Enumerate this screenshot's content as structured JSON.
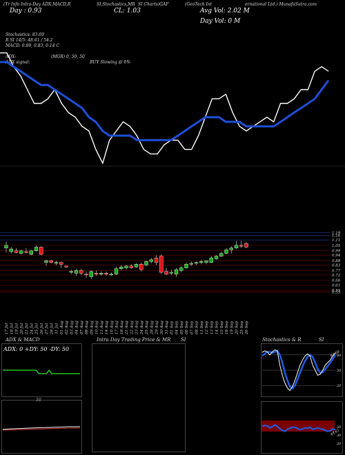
{
  "header": {
    "line1_left": "(Tr Info Intra-Day ADX,MACD,R",
    "line1_mid": "SI,Stochastics,MR",
    "line1_mid2": "SI Charts)GAF",
    "line1_right": "(GeoTech Int",
    "line1_right2": "ernational Ltd.) MunafaSutra.com",
    "day": "Day : 0.93",
    "close": "CL: 1.03",
    "avg_vol": "Avg Vol: 2.02  M",
    "day_vol": "Day Vol: 0   M",
    "stoch": "Stochastics: 83.69",
    "rsi": "R   SI 14/5: 48.61 / 54.2",
    "macd": "MACD: 0.99,  0.83,  0.14   C",
    "adx": "ADX:",
    "mgr": "(MGR) 0,  50,  50",
    "adx_signal": "ADX  signal:",
    "buy": "BUY Slowing @ 0%"
  },
  "colors": {
    "price_line": "#ffffff",
    "ma_line": "#1e4fd8",
    "bull": "#1aa61a",
    "bear": "#e01010",
    "grid_red": "#7a0000"
  },
  "chart_data": {
    "type": "line",
    "price_line": [
      1.14,
      1.14,
      1.11,
      1.09,
      1.06,
      1.03,
      1.03,
      1.04,
      1.06,
      1.03,
      1.01,
      1.0,
      0.98,
      0.97,
      0.93,
      0.9,
      0.95,
      0.97,
      0.99,
      0.98,
      0.96,
      0.93,
      0.92,
      0.92,
      0.94,
      0.95,
      0.95,
      0.93,
      0.93,
      0.96,
      1.0,
      1.04,
      1.04,
      1.05,
      1.01,
      0.98,
      0.97,
      0.98,
      0.99,
      1.0,
      0.99,
      1.03,
      1.03,
      1.04,
      1.06,
      1.06,
      1.1,
      1.11,
      1.1
    ],
    "ma_line": [
      1.12,
      1.12,
      1.11,
      1.1,
      1.09,
      1.08,
      1.07,
      1.07,
      1.06,
      1.05,
      1.04,
      1.03,
      1.02,
      1.0,
      0.99,
      0.97,
      0.96,
      0.96,
      0.96,
      0.96,
      0.95,
      0.95,
      0.95,
      0.95,
      0.95,
      0.95,
      0.96,
      0.97,
      0.98,
      0.99,
      1.0,
      1.0,
      1.0,
      0.99,
      0.99,
      0.99,
      0.98,
      0.98,
      0.98,
      0.98,
      0.98,
      0.99,
      1.0,
      1.01,
      1.02,
      1.03,
      1.04,
      1.06,
      1.08
    ],
    "candles": [
      {
        "d": "17 Jul",
        "o": 1.02,
        "h": 1.09,
        "l": 0.97,
        "c": 1.05
      },
      {
        "d": "18 Jul",
        "o": 0.98,
        "h": 1.03,
        "l": 0.96,
        "c": 1.01
      },
      {
        "d": "19 Jul",
        "o": 0.99,
        "h": 1.02,
        "l": 0.96,
        "c": 0.97
      },
      {
        "d": "20 Jul",
        "o": 0.96,
        "h": 1.0,
        "l": 0.95,
        "c": 0.99
      },
      {
        "d": "21 Jul",
        "o": 0.98,
        "h": 1.02,
        "l": 0.96,
        "c": 0.97
      },
      {
        "d": "24 Jul",
        "o": 0.95,
        "h": 1.0,
        "l": 0.94,
        "c": 0.99
      },
      {
        "d": "25 Jul",
        "o": 0.99,
        "h": 1.05,
        "l": 0.98,
        "c": 1.03
      },
      {
        "d": "26 Jul",
        "o": 1.03,
        "h": 1.04,
        "l": 0.94,
        "c": 0.95
      },
      {
        "d": "27 Jul",
        "o": 0.86,
        "h": 0.89,
        "l": 0.82,
        "c": 0.88
      },
      {
        "d": "28 Jul",
        "o": 0.88,
        "h": 0.89,
        "l": 0.85,
        "c": 0.86
      },
      {
        "d": "31 Jul",
        "o": 0.85,
        "h": 0.88,
        "l": 0.83,
        "c": 0.86
      },
      {
        "d": "01 Aug",
        "o": 0.86,
        "h": 0.87,
        "l": 0.8,
        "c": 0.84
      },
      {
        "d": "02 Aug",
        "o": 0.82,
        "h": 0.82,
        "l": 0.8,
        "c": 0.81
      },
      {
        "d": "03 Aug",
        "o": 0.75,
        "h": 0.78,
        "l": 0.73,
        "c": 0.76
      },
      {
        "d": "04 Aug",
        "o": 0.74,
        "h": 0.79,
        "l": 0.71,
        "c": 0.77
      },
      {
        "d": "07 Aug",
        "o": 0.77,
        "h": 0.79,
        "l": 0.72,
        "c": 0.74
      },
      {
        "d": "08 Aug",
        "o": 0.73,
        "h": 0.76,
        "l": 0.69,
        "c": 0.72
      },
      {
        "d": "09 Aug",
        "o": 0.7,
        "h": 0.77,
        "l": 0.68,
        "c": 0.76
      },
      {
        "d": "10 Aug",
        "o": 0.74,
        "h": 0.77,
        "l": 0.71,
        "c": 0.73
      },
      {
        "d": "11 Aug",
        "o": 0.73,
        "h": 0.76,
        "l": 0.71,
        "c": 0.74
      },
      {
        "d": "14 Aug",
        "o": 0.74,
        "h": 0.76,
        "l": 0.71,
        "c": 0.73
      },
      {
        "d": "16 Aug",
        "o": 0.72,
        "h": 0.75,
        "l": 0.71,
        "c": 0.73
      },
      {
        "d": "17 Aug",
        "o": 0.73,
        "h": 0.81,
        "l": 0.72,
        "c": 0.79
      },
      {
        "d": "18 Aug",
        "o": 0.79,
        "h": 0.83,
        "l": 0.77,
        "c": 0.81
      },
      {
        "d": "21 Aug",
        "o": 0.8,
        "h": 0.83,
        "l": 0.78,
        "c": 0.82
      },
      {
        "d": "22 Aug",
        "o": 0.82,
        "h": 0.84,
        "l": 0.79,
        "c": 0.8
      },
      {
        "d": "23 Aug",
        "o": 0.81,
        "h": 0.85,
        "l": 0.8,
        "c": 0.84
      },
      {
        "d": "24 Aug",
        "o": 0.84,
        "h": 0.86,
        "l": 0.76,
        "c": 0.78
      },
      {
        "d": "25 Aug",
        "o": 0.83,
        "h": 0.88,
        "l": 0.82,
        "c": 0.87
      },
      {
        "d": "28 Aug",
        "o": 0.87,
        "h": 0.91,
        "l": 0.85,
        "c": 0.89
      },
      {
        "d": "29 Aug",
        "o": 0.91,
        "h": 0.94,
        "l": 0.83,
        "c": 0.86
      },
      {
        "d": "30 Aug",
        "o": 0.93,
        "h": 0.95,
        "l": 0.73,
        "c": 0.75
      },
      {
        "d": "31 Aug",
        "o": 0.76,
        "h": 0.8,
        "l": 0.72,
        "c": 0.73
      },
      {
        "d": "01 Sep",
        "o": 0.74,
        "h": 0.78,
        "l": 0.72,
        "c": 0.75
      },
      {
        "d": "04 Sep",
        "o": 0.73,
        "h": 0.8,
        "l": 0.7,
        "c": 0.78
      },
      {
        "d": "05 Sep",
        "o": 0.77,
        "h": 0.82,
        "l": 0.75,
        "c": 0.8
      },
      {
        "d": "06 Sep",
        "o": 0.8,
        "h": 0.86,
        "l": 0.79,
        "c": 0.84
      },
      {
        "d": "07 Sep",
        "o": 0.84,
        "h": 0.87,
        "l": 0.82,
        "c": 0.85
      },
      {
        "d": "08 Sep",
        "o": 0.85,
        "h": 0.87,
        "l": 0.83,
        "c": 0.86
      },
      {
        "d": "11 Sep",
        "o": 0.86,
        "h": 0.89,
        "l": 0.84,
        "c": 0.87
      },
      {
        "d": "12 Sep",
        "o": 0.86,
        "h": 0.88,
        "l": 0.84,
        "c": 0.88
      },
      {
        "d": "13 Sep",
        "o": 0.86,
        "h": 0.93,
        "l": 0.85,
        "c": 0.91
      },
      {
        "d": "14 Sep",
        "o": 0.9,
        "h": 0.94,
        "l": 0.89,
        "c": 0.93
      },
      {
        "d": "15 Sep",
        "o": 0.93,
        "h": 0.98,
        "l": 0.92,
        "c": 0.96
      },
      {
        "d": "18 Sep",
        "o": 0.96,
        "h": 1.02,
        "l": 0.95,
        "c": 1.0
      },
      {
        "d": "19 Sep",
        "o": 1.0,
        "h": 1.04,
        "l": 0.96,
        "c": 1.02
      },
      {
        "d": "20 Sep",
        "o": 1.02,
        "h": 1.1,
        "l": 1.01,
        "c": 1.05
      },
      {
        "d": "25 Sep",
        "o": 1.05,
        "h": 1.1,
        "l": 1.02,
        "c": 1.04
      },
      {
        "d": "26 Sep",
        "o": 1.07,
        "h": 1.09,
        "l": 1.02,
        "c": 1.03
      }
    ],
    "price_ticks": [
      "1.19",
      "1.16",
      "1.11",
      "1.05",
      "0.99",
      "0.94",
      "0.88",
      "0.83",
      "0.77",
      "0.72",
      "0.66",
      "0.61",
      "0.55",
      "0.53"
    ],
    "date_labels": [
      "17 Jul",
      "18 Jul",
      "19 Jul",
      "20 Jul",
      "21 Jul",
      "24 Jul",
      "25 Jul",
      "26 Jul",
      "27 Jul",
      "28 Jul",
      "31 Jul",
      "01 Aug",
      "02 Aug",
      "03 Aug",
      "04 Aug",
      "07 Aug",
      "08 Aug",
      "09 Aug",
      "10 Aug",
      "11 Aug",
      "14 Aug",
      "16 Aug",
      "17 Aug",
      "18 Aug",
      "21 Aug",
      "22 Aug",
      "23 Aug",
      "24 Aug",
      "25 Aug",
      "28 Aug",
      "29 Aug",
      "30 Aug",
      "31 Aug",
      "01 Sep",
      "04 Sep",
      "05 Sep",
      "06 Sep",
      "07 Sep",
      "08 Sep",
      "11 Sep",
      "12 Sep",
      "13 Sep",
      "14 Sep",
      "15 Sep",
      "18 Sep",
      "19 Sep",
      "20 Sep",
      "25 Sep",
      "26 Sep"
    ]
  },
  "panels": {
    "adx_title": "ADX  & MACD",
    "adx_values": "ADX: 0  +DY: 50  -DY: 50",
    "intra_title": "Intra  Day Trading Price  & MR",
    "intra_si": "SI",
    "stoch_title": "Stochastics & R",
    "stoch_si": "SI",
    "stoch_ticks": [
      "80",
      "50",
      "20"
    ],
    "rsi_ticks": [
      "50",
      "30",
      "20"
    ],
    "stoch_value": "83.69",
    "rsi_value": "48.61",
    "adx_line": [
      50,
      50,
      50,
      50,
      50,
      50,
      50,
      50,
      50,
      50,
      50,
      50,
      50,
      50,
      48,
      48,
      48,
      48,
      50,
      48,
      48,
      48,
      48,
      48,
      48,
      48,
      48,
      48,
      48,
      48,
      48
    ],
    "macd_line": [
      0.2,
      0.2,
      0.22,
      0.25,
      0.25,
      0.28,
      0.28,
      0.3,
      0.32,
      0.33,
      0.35,
      0.36,
      0.38,
      0.38,
      0.4,
      0.42,
      0.42,
      0.43,
      0.45,
      0.46,
      0.47,
      0.48,
      0.5,
      0.5,
      0.5,
      0.5,
      0.51
    ],
    "stoch_k": [
      85,
      88,
      86,
      80,
      86,
      90,
      88,
      60,
      40,
      25,
      15,
      10,
      18,
      30,
      45,
      60,
      70,
      78,
      82,
      78,
      60,
      50,
      40,
      42,
      50,
      60,
      65,
      70,
      78,
      84
    ],
    "stoch_d": [
      78,
      82,
      86,
      86,
      84,
      86,
      88,
      80,
      65,
      45,
      30,
      18,
      14,
      20,
      32,
      45,
      58,
      68,
      76,
      80,
      76,
      65,
      52,
      45,
      46,
      52,
      58,
      65,
      72,
      80
    ],
    "rsi_line": [
      55,
      57,
      56,
      52,
      54,
      58,
      55,
      50,
      47,
      45,
      49,
      51,
      53,
      53,
      51,
      48,
      50,
      52,
      51,
      53,
      49,
      50,
      52,
      50,
      49,
      47,
      45,
      46,
      50,
      48
    ]
  }
}
